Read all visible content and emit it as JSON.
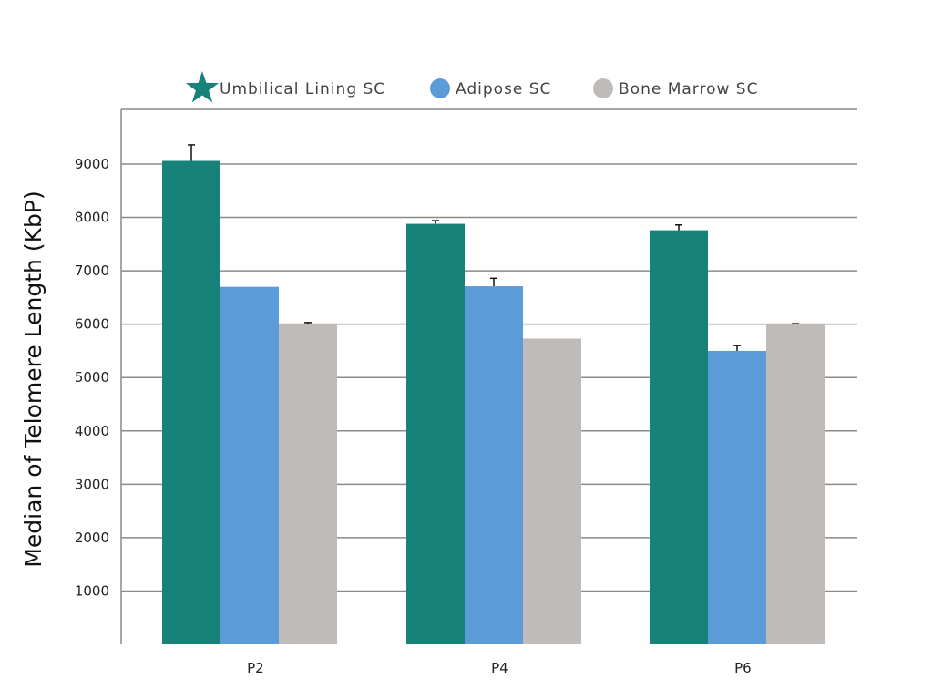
{
  "chart_data": {
    "type": "bar",
    "categories": [
      "P2",
      "P4",
      "P6"
    ],
    "series": [
      {
        "name": "Umbilical Lining SC",
        "color": "#17827a",
        "legend_marker": "star",
        "values": [
          9060,
          7880,
          7760
        ],
        "error": [
          300,
          60,
          100
        ]
      },
      {
        "name": "Adipose SC",
        "color": "#5b9bd7",
        "legend_marker": "circle",
        "values": [
          6700,
          6710,
          5500
        ],
        "error": [
          0,
          150,
          100
        ]
      },
      {
        "name": "Bone Marrow SC",
        "color": "#bfbbb8",
        "legend_marker": "circle",
        "values": [
          6000,
          5730,
          6000
        ],
        "error": [
          30,
          0,
          10
        ]
      }
    ],
    "title": "",
    "xlabel": "",
    "ylabel": "Median of Telomere Length (KbP)",
    "yticks": [
      1000,
      2000,
      3000,
      4000,
      5000,
      6000,
      7000,
      8000,
      9000
    ],
    "ylim": [
      0,
      10000
    ],
    "grid": true,
    "legend_position": "top"
  }
}
